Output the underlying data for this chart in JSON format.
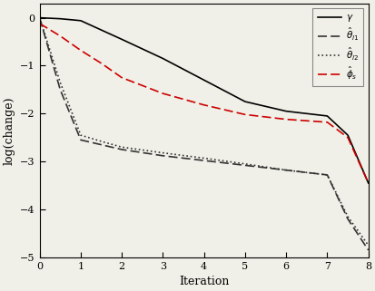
{
  "title": "",
  "xlabel": "Iteration",
  "ylabel": "log(change)",
  "xlim": [
    0,
    8
  ],
  "ylim": [
    -5,
    0.3
  ],
  "yticks": [
    0,
    -1,
    -2,
    -3,
    -4,
    -5
  ],
  "xticks": [
    0,
    1,
    2,
    3,
    4,
    5,
    6,
    7,
    8
  ],
  "gamma": {
    "x": [
      0,
      0.5,
      1,
      2,
      3,
      4,
      5,
      6,
      7,
      7.5,
      8
    ],
    "y": [
      0.0,
      -0.02,
      -0.06,
      -0.45,
      -0.85,
      -1.3,
      -1.75,
      -1.95,
      -2.05,
      -2.45,
      -3.45
    ],
    "color": "#000000",
    "linewidth": 1.2,
    "label": "$\\gamma$"
  },
  "theta_l1": {
    "x": [
      0,
      0.5,
      1,
      1.5,
      2,
      3,
      4,
      5,
      6,
      7,
      7.5,
      8
    ],
    "y": [
      0.0,
      -1.5,
      -2.55,
      -2.65,
      -2.75,
      -2.88,
      -2.98,
      -3.08,
      -3.18,
      -3.28,
      -4.2,
      -4.85
    ],
    "color": "#333333",
    "linewidth": 1.2,
    "label": "$\\hat{\\theta}_{l1}$"
  },
  "theta_l2": {
    "x": [
      0,
      0.5,
      1,
      1.5,
      2,
      3,
      4,
      5,
      6,
      7,
      7.5,
      8
    ],
    "y": [
      0.0,
      -1.35,
      -2.45,
      -2.58,
      -2.7,
      -2.82,
      -2.93,
      -3.05,
      -3.18,
      -3.28,
      -4.15,
      -4.75
    ],
    "color": "#333333",
    "linewidth": 1.2,
    "label": "$\\hat{\\theta}_{l2}$"
  },
  "phi_s": {
    "x": [
      0,
      0.5,
      1,
      1.5,
      2,
      3,
      4,
      5,
      6,
      7,
      7.5,
      8
    ],
    "y": [
      -0.12,
      -0.38,
      -0.68,
      -0.95,
      -1.25,
      -1.58,
      -1.82,
      -2.02,
      -2.12,
      -2.18,
      -2.5,
      -3.45
    ],
    "color": "#cc0000",
    "linewidth": 1.2,
    "label": "$\\hat{\\phi}_{s}$"
  },
  "legend_loc": "upper right",
  "figsize": [
    4.13,
    3.21
  ],
  "dpi": 100,
  "bg_color": "#f0f0e8"
}
